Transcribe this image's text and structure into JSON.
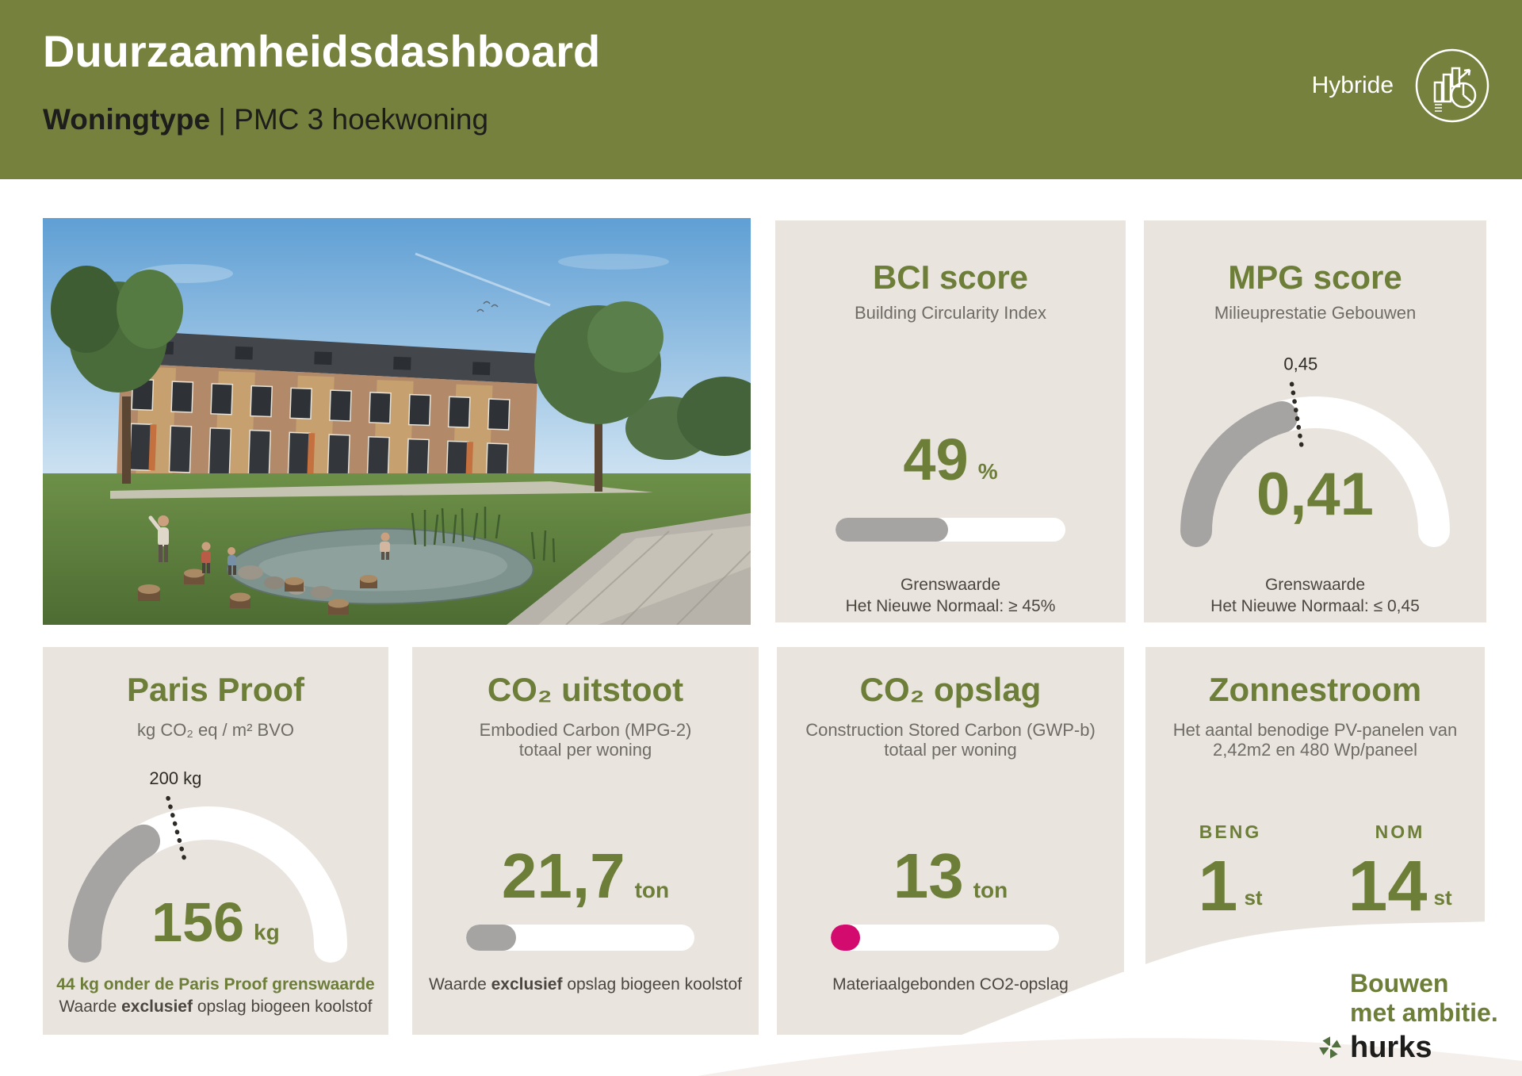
{
  "header": {
    "title": "Duurzaamheidsdashboard",
    "subtitle_bold": "Woningtype",
    "subtitle_rest": " | PMC 3 hoekwoning",
    "variant_label": "Hybride"
  },
  "cards": {
    "bci": {
      "title": "BCI score",
      "subtitle": "Building Circularity Index",
      "value": "49",
      "unit": "%",
      "progress_pct": 49,
      "footer_line1": "Grenswaarde",
      "footer_line2": "Het Nieuwe Normaal: ≥ 45%"
    },
    "mpg": {
      "title": "MPG score",
      "subtitle": "Milieuprestatie Gebouwen",
      "value": "0,41",
      "footer_line1": "Grenswaarde",
      "footer_line2": "Het Nieuwe Normaal: ≤ 0,45",
      "gauge": {
        "value": 0.41,
        "max": 1.0,
        "marker": 0.45,
        "marker_label": "0,45"
      }
    },
    "paris_proof": {
      "title": "Paris Proof",
      "subtitle": "kg CO₂ eq / m² BVO",
      "value": "156",
      "unit": "kg",
      "footer_highlight": "44 kg onder de Paris Proof grenswaarde",
      "footer_pre": "Waarde ",
      "footer_bold": "exclusief",
      "footer_post": " opslag biogeen koolstof",
      "gauge": {
        "value": 156,
        "max": 480,
        "marker": 200,
        "marker_label": "200 kg"
      }
    },
    "co2_uitstoot": {
      "title": "CO₂ uitstoot",
      "subtitle_line1": "Embodied Carbon (MPG-2)",
      "subtitle_line2": "totaal per woning",
      "value": "21,7",
      "unit": "ton",
      "progress_pct": 22,
      "footer_pre": "Waarde ",
      "footer_bold": "exclusief",
      "footer_post": " opslag biogeen koolstof"
    },
    "co2_opslag": {
      "title": "CO₂ opslag",
      "subtitle_line1": "Construction Stored Carbon (GWP-b)",
      "subtitle_line2": "totaal per woning",
      "value": "13",
      "unit": "ton",
      "progress_pct": 13,
      "footer": "Materiaalgebonden CO2-opslag"
    },
    "zonnestroom": {
      "title": "Zonnestroom",
      "subtitle_line1": "Het aantal benodige PV-panelen van",
      "subtitle_line2": "2,42m2 en 480 Wp/paneel",
      "metrics": [
        {
          "label": "BENG",
          "value": "1",
          "unit": "st"
        },
        {
          "label": "NOM",
          "value": "14",
          "unit": "st"
        }
      ]
    }
  },
  "branding": {
    "line1": "Bouwen",
    "line2": "met ambitie.",
    "brand": "hurks"
  },
  "colors": {
    "header_bg": "#76813e",
    "accent_green": "#6d7e38",
    "card_bg": "#e9e5de",
    "bar_track": "#ffffff",
    "bar_fill": "#a6a4a2",
    "pink": "#d30b6e",
    "text_dark": "#2e2b26",
    "text_gray": "#6f6b66",
    "footer_gray": "#4b463f"
  },
  "chart_data": [
    {
      "type": "bar",
      "title": "BCI score",
      "subtitle": "Building Circularity Index",
      "values": [
        49
      ],
      "unit": "%",
      "range": [
        0,
        100
      ],
      "threshold": 45,
      "threshold_note": "Het Nieuwe Normaal: ≥ 45%"
    },
    {
      "type": "gauge",
      "title": "MPG score",
      "subtitle": "Milieuprestatie Gebouwen",
      "value": 0.41,
      "marker": 0.45,
      "range": [
        0,
        1.0
      ],
      "threshold_note": "Het Nieuwe Normaal: ≤ 0,45"
    },
    {
      "type": "gauge",
      "title": "Paris Proof",
      "subtitle": "kg CO₂ eq / m² BVO",
      "value": 156,
      "marker": 200,
      "unit": "kg",
      "range": [
        0,
        480
      ],
      "note": "44 kg onder de Paris Proof grenswaarde",
      "note2": "Waarde exclusief opslag biogeen koolstof"
    },
    {
      "type": "bar",
      "title": "CO₂ uitstoot",
      "subtitle": "Embodied Carbon (MPG-2) totaal per woning",
      "values": [
        21.7
      ],
      "unit": "ton",
      "fill_pct": 22,
      "note": "Waarde exclusief opslag biogeen koolstof"
    },
    {
      "type": "bar",
      "title": "CO₂ opslag",
      "subtitle": "Construction Stored Carbon (GWP-b) totaal per woning",
      "values": [
        13
      ],
      "unit": "ton",
      "fill_pct": 13,
      "note": "Materiaalgebonden CO2-opslag"
    },
    {
      "type": "table",
      "title": "Zonnestroom",
      "subtitle": "Het aantal benodige PV-panelen van 2,42m2 en 480 Wp/paneel",
      "categories": [
        "BENG",
        "NOM"
      ],
      "values": [
        1,
        14
      ],
      "unit": "st"
    }
  ]
}
